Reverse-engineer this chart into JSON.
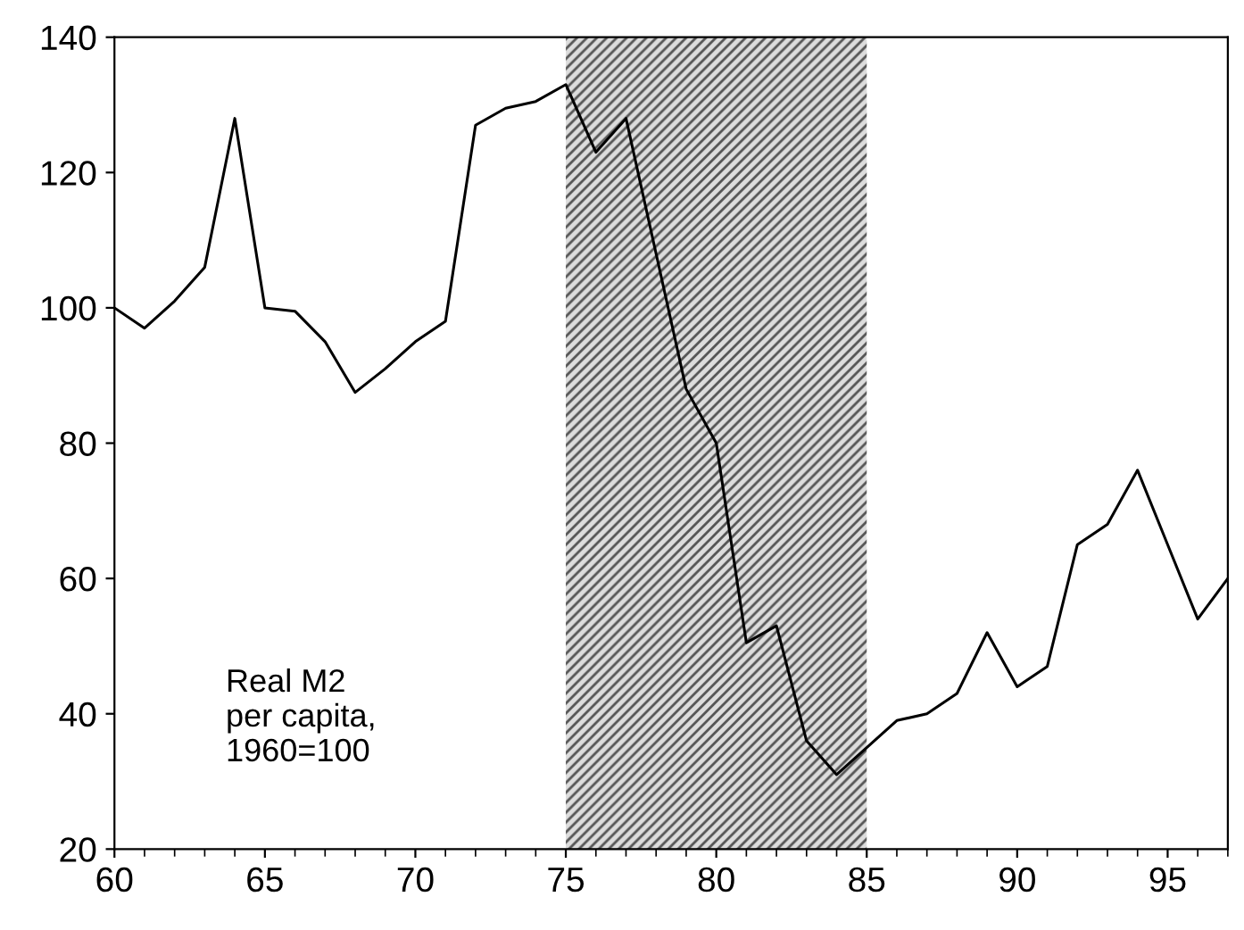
{
  "chart_data": {
    "type": "line",
    "x": [
      60,
      61,
      62,
      63,
      64,
      65,
      66,
      67,
      68,
      69,
      70,
      71,
      72,
      73,
      74,
      75,
      76,
      77,
      78,
      79,
      80,
      81,
      82,
      83,
      84,
      85,
      86,
      87,
      88,
      89,
      90,
      91,
      92,
      93,
      94,
      95,
      96,
      97
    ],
    "series": [
      {
        "color": "#000000",
        "values": [
          100,
          97,
          101,
          106,
          128,
          100,
          99.5,
          95,
          87.5,
          91,
          95,
          98,
          127,
          129.5,
          130.5,
          133,
          123,
          128,
          108,
          88,
          80,
          50.5,
          53,
          36,
          31,
          35,
          39,
          40,
          43,
          52,
          44,
          47,
          65,
          68,
          76,
          65,
          54,
          60
        ]
      }
    ],
    "xlim": [
      60,
      97
    ],
    "xticks": [
      60,
      65,
      70,
      75,
      80,
      85,
      90,
      95
    ],
    "ylim": [
      20,
      140
    ],
    "yticks": [
      20,
      40,
      60,
      80,
      100,
      120,
      140
    ],
    "bands": [
      {
        "axis": "x",
        "from": 75,
        "to": 85,
        "color": "#555555"
      }
    ],
    "annotations": [
      "Real M2\nper capita,\n1960=100"
    ],
    "grid": false,
    "legend": false,
    "marker": "none",
    "line_style": "solid"
  }
}
